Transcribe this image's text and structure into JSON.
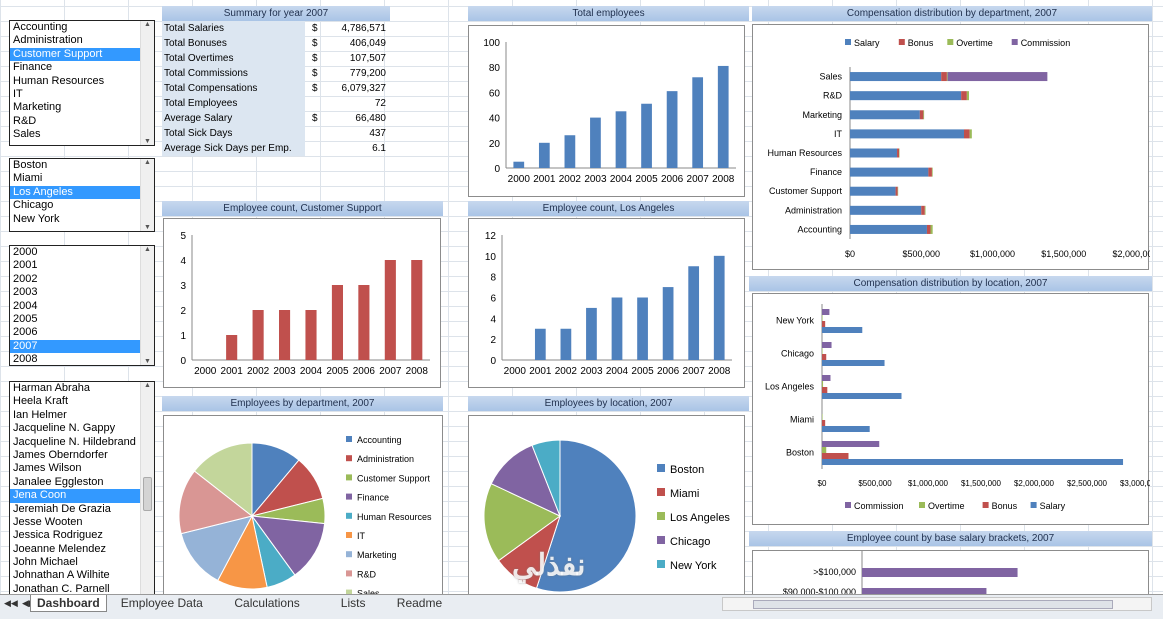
{
  "listboxes": {
    "departments": {
      "items": [
        "Accounting",
        "Administration",
        "Customer Support",
        "Finance",
        "Human Resources",
        "IT",
        "Marketing",
        "R&D",
        "Sales"
      ],
      "selected": 2
    },
    "locations": {
      "items": [
        "Boston",
        "Miami",
        "Los Angeles",
        "Chicago",
        "New York"
      ],
      "selected": 2
    },
    "years": {
      "items": [
        "2000",
        "2001",
        "2002",
        "2003",
        "2004",
        "2005",
        "2006",
        "2007",
        "2008"
      ],
      "selected": 7
    },
    "employees": {
      "items": [
        "Harman Abraha",
        "Heela Kraft",
        "Ian Helmer",
        "Jacqueline N. Gappy",
        "Jacqueline N. Hildebrand",
        "James Oberndorfer",
        "James Wilson",
        "Janalee Eggleston",
        "Jena Coon",
        "Jeremiah De Grazia",
        "Jesse Wooten",
        "Jessica Rodriguez",
        "Joeanne Melendez",
        "John Michael",
        "Johnathan A Wilhite",
        "Jonathan C. Parnell"
      ],
      "selected": 8
    }
  },
  "summary": {
    "title": "Summary for year 2007",
    "rows": [
      {
        "label": "Total Salaries",
        "cur": "$",
        "value": "4,786,571"
      },
      {
        "label": "Total Bonuses",
        "cur": "$",
        "value": "406,049"
      },
      {
        "label": "Total Overtimes",
        "cur": "$",
        "value": "107,507"
      },
      {
        "label": "Total Commissions",
        "cur": "$",
        "value": "779,200"
      },
      {
        "label": "Total Compensations",
        "cur": "$",
        "value": "6,079,327"
      },
      {
        "label": "Total Employees",
        "cur": "",
        "value": "72"
      },
      {
        "label": "Average Salary",
        "cur": "$",
        "value": "66,480"
      },
      {
        "label": "Total Sick Days",
        "cur": "",
        "value": "437"
      },
      {
        "label": "Average Sick Days per Emp.",
        "cur": "",
        "value": "6.1"
      }
    ]
  },
  "headers": {
    "total_employees": "Total employees",
    "comp_dept": "Compensation distribution by department, 2007",
    "emp_cs": "Employee count, Customer Support",
    "emp_la": "Employee count, Los Angeles",
    "comp_loc": "Compensation distribution by location, 2007",
    "by_dept": "Employees by department, 2007",
    "by_loc": "Employees by location, 2007",
    "salary_brackets": "Employee count by base salary brackets, 2007"
  },
  "colors": {
    "blue": "#4f81bd",
    "red": "#c0504d",
    "green": "#9bbb59",
    "purple": "#8064a2",
    "teal": "#4bacc6",
    "orange": "#f79646",
    "lightblue": "#95b3d7",
    "pink": "#d99694",
    "khaki": "#c3d69b"
  },
  "chart_data": [
    {
      "id": "total_employees",
      "type": "bar",
      "categories": [
        "2000",
        "2001",
        "2002",
        "2003",
        "2004",
        "2005",
        "2006",
        "2007",
        "2008"
      ],
      "values": [
        5,
        20,
        26,
        40,
        45,
        51,
        61,
        72,
        81
      ],
      "ylim": [
        0,
        100
      ],
      "yticks": [
        0,
        20,
        40,
        60,
        80,
        100
      ],
      "color": "#4f81bd"
    },
    {
      "id": "emp_cs",
      "type": "bar",
      "categories": [
        "2000",
        "2001",
        "2002",
        "2003",
        "2004",
        "2005",
        "2006",
        "2007",
        "2008"
      ],
      "values": [
        0,
        1,
        2,
        2,
        2,
        3,
        3,
        4,
        4
      ],
      "ylim": [
        0,
        5
      ],
      "yticks": [
        0,
        1,
        2,
        3,
        4,
        5
      ],
      "color": "#c0504d"
    },
    {
      "id": "emp_la",
      "type": "bar",
      "categories": [
        "2000",
        "2001",
        "2002",
        "2003",
        "2004",
        "2005",
        "2006",
        "2007",
        "2008"
      ],
      "values": [
        0,
        3,
        3,
        5,
        6,
        6,
        7,
        9,
        10
      ],
      "ylim": [
        0,
        12
      ],
      "yticks": [
        0,
        2,
        4,
        6,
        8,
        10,
        12
      ],
      "color": "#4f81bd"
    },
    {
      "id": "comp_dept",
      "type": "bar",
      "orientation": "horizontal",
      "stacked": true,
      "categories": [
        "Sales",
        "R&D",
        "Marketing",
        "IT",
        "Human Resources",
        "Finance",
        "Customer Support",
        "Administration",
        "Accounting"
      ],
      "xlim": [
        0,
        2000000
      ],
      "xticks": [
        "$0",
        "$500,000",
        "$1,000,000",
        "$1,500,000",
        "$2,000,000"
      ],
      "legend": [
        "Salary",
        "Bonus",
        "Overtime",
        "Commission"
      ],
      "legend_placement": "top",
      "series": [
        {
          "name": "Salary",
          "color": "#4f81bd",
          "values": [
            640000,
            780000,
            490000,
            800000,
            330000,
            550000,
            320000,
            500000,
            540000
          ]
        },
        {
          "name": "Bonus",
          "color": "#c0504d",
          "values": [
            40000,
            40000,
            25000,
            40000,
            15000,
            25000,
            15000,
            25000,
            25000
          ]
        },
        {
          "name": "Overtime",
          "color": "#9bbb59",
          "values": [
            5000,
            15000,
            5000,
            15000,
            3000,
            5000,
            3000,
            5000,
            15000
          ]
        },
        {
          "name": "Commission",
          "color": "#8064a2",
          "values": [
            700000,
            0,
            0,
            0,
            0,
            0,
            0,
            0,
            0
          ]
        }
      ]
    },
    {
      "id": "comp_loc",
      "type": "bar",
      "orientation": "horizontal",
      "grouped": true,
      "categories": [
        "New York",
        "Chicago",
        "Los Angeles",
        "Miami",
        "Boston"
      ],
      "xlim": [
        0,
        3000000
      ],
      "xticks": [
        "$0",
        "$500,000",
        "$1,000,000",
        "$1,500,000",
        "$2,000,000",
        "$2,500,000",
        "$3,000,000"
      ],
      "legend": [
        "Commission",
        "Overtime",
        "Bonus",
        "Salary"
      ],
      "legend_placement": "bottom",
      "series": [
        {
          "name": "Commission",
          "color": "#8064a2",
          "values": [
            70000,
            90000,
            80000,
            0,
            540000
          ]
        },
        {
          "name": "Overtime",
          "color": "#9bbb59",
          "values": [
            5000,
            5000,
            10000,
            5000,
            40000
          ]
        },
        {
          "name": "Bonus",
          "color": "#c0504d",
          "values": [
            30000,
            40000,
            50000,
            30000,
            250000
          ]
        },
        {
          "name": "Salary",
          "color": "#4f81bd",
          "values": [
            380000,
            590000,
            750000,
            450000,
            2840000
          ]
        }
      ]
    },
    {
      "id": "by_dept",
      "type": "pie",
      "legend": [
        "Accounting",
        "Administration",
        "Customer Support",
        "Finance",
        "Human Resources",
        "IT",
        "Marketing",
        "R&D",
        "Sales"
      ],
      "values": [
        10,
        9,
        5,
        12,
        6,
        10,
        12,
        13,
        13
      ],
      "colors": [
        "#4f81bd",
        "#c0504d",
        "#9bbb59",
        "#8064a2",
        "#4bacc6",
        "#f79646",
        "#95b3d7",
        "#d99694",
        "#c3d69b"
      ]
    },
    {
      "id": "by_loc",
      "type": "pie",
      "legend": [
        "Boston",
        "Miami",
        "Los Angeles",
        "Chicago",
        "New York"
      ],
      "values": [
        55,
        10,
        17,
        12,
        6
      ],
      "colors": [
        "#4f81bd",
        "#c0504d",
        "#9bbb59",
        "#8064a2",
        "#4bacc6"
      ]
    },
    {
      "id": "salary_brackets",
      "type": "bar",
      "orientation": "horizontal",
      "categories": [
        ">$100,000",
        "$90,000-$100,000"
      ],
      "values": [
        10,
        8
      ],
      "color": "#8064a2"
    }
  ],
  "tabs": {
    "items": [
      "Dashboard",
      "Employee Data",
      "Calculations",
      "Lists",
      "Readme"
    ],
    "active": 0
  },
  "watermark": "نفذلي"
}
